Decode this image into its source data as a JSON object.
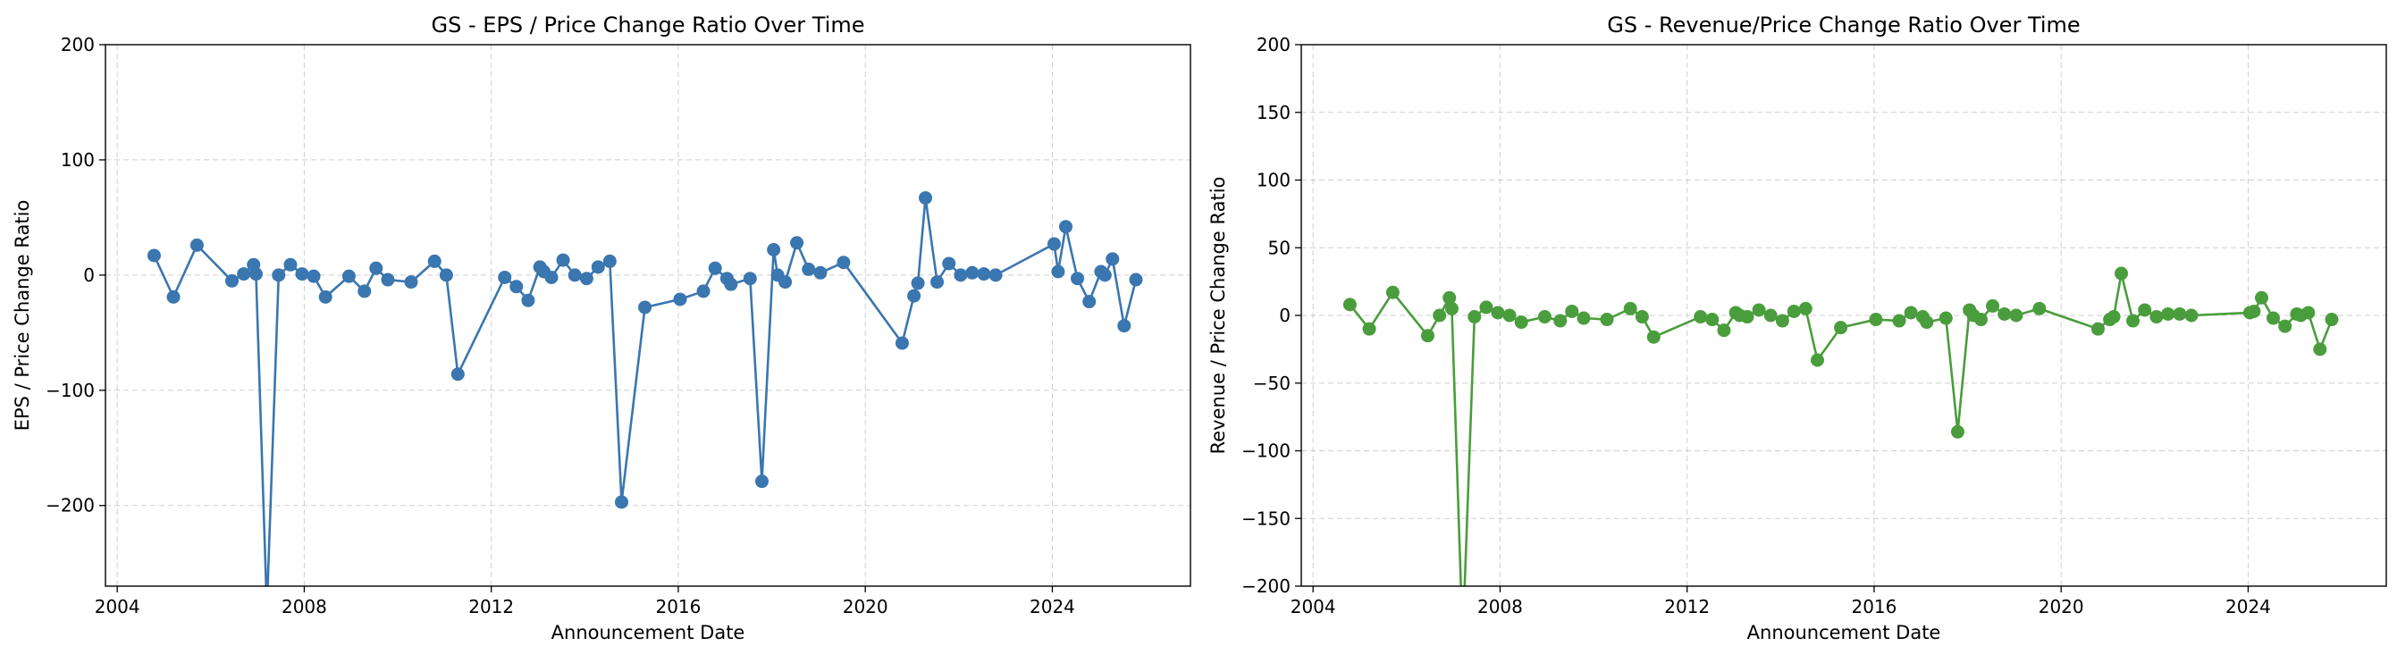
{
  "chart_data": [
    {
      "type": "line",
      "title": "GS - EPS / Price Change Ratio Over Time",
      "xlabel": "Announcement Date",
      "ylabel": "EPS / Price Change Ratio",
      "xlim": [
        "2003-10-01",
        "2026-12-15"
      ],
      "ylim": [
        -270,
        200
      ],
      "xticks": [
        "2004",
        "2008",
        "2012",
        "2016",
        "2020",
        "2024"
      ],
      "yticks": [
        200,
        100,
        0,
        -100,
        -200
      ],
      "ytick_labels": [
        "200",
        "100",
        "0",
        "−100",
        "−200"
      ],
      "grid": true,
      "color": "#3a76af",
      "series": [
        {
          "x": [
            "2004-10-15",
            "2005-03-15",
            "2005-09-15",
            "2006-06-15",
            "2006-09-15",
            "2006-12-01",
            "2006-12-20",
            "2007-03-15",
            "2007-06-15",
            "2007-09-15",
            "2007-12-15",
            "2008-03-15",
            "2008-06-15",
            "2008-12-15",
            "2009-04-15",
            "2009-07-15",
            "2009-10-15",
            "2010-04-15",
            "2010-10-15",
            "2011-01-15",
            "2011-04-15",
            "2012-04-15",
            "2012-07-15",
            "2012-10-15",
            "2013-01-15",
            "2013-02-15",
            "2013-04-15",
            "2013-07-15",
            "2013-10-15",
            "2014-01-15",
            "2014-04-15",
            "2014-07-15",
            "2014-10-15",
            "2015-04-15",
            "2016-01-15",
            "2016-07-15",
            "2016-10-15",
            "2017-01-15",
            "2017-02-15",
            "2017-07-15",
            "2017-10-15",
            "2018-01-15",
            "2018-02-15",
            "2018-04-15",
            "2018-07-15",
            "2018-10-15",
            "2019-01-15",
            "2019-07-15",
            "2020-10-15",
            "2021-01-15",
            "2021-02-15",
            "2021-04-15",
            "2021-07-15",
            "2021-10-15",
            "2022-01-15",
            "2022-04-15",
            "2022-07-15",
            "2022-10-15",
            "2024-01-15",
            "2024-02-15",
            "2024-04-15",
            "2024-07-15",
            "2024-10-15",
            "2025-01-15",
            "2025-02-15",
            "2025-04-15",
            "2025-07-15",
            "2025-10-15"
          ],
          "y": [
            17,
            -19,
            26,
            -5,
            1,
            9,
            1,
            -290,
            0,
            9,
            1,
            -1,
            -19,
            -1,
            -14,
            6,
            -4,
            -6,
            12,
            0,
            -86,
            -2,
            -10,
            -22,
            7,
            3,
            -2,
            13,
            0,
            -3,
            7,
            12,
            -197,
            -28,
            -21,
            -14,
            6,
            -3,
            -8,
            -3,
            -179,
            22,
            0,
            -6,
            28,
            5,
            2,
            11,
            -59,
            -18,
            -7,
            67,
            -6,
            10,
            0,
            2,
            1,
            0,
            27,
            3,
            42,
            -3,
            -23,
            3,
            0,
            14,
            -44,
            -4
          ]
        }
      ]
    },
    {
      "type": "line",
      "title": "GS - Revenue/Price Change Ratio Over Time",
      "xlabel": "Announcement Date",
      "ylabel": "Revenue / Price Change Ratio",
      "xlim": [
        "2003-10-01",
        "2026-12-15"
      ],
      "ylim": [
        -200,
        200
      ],
      "xticks": [
        "2004",
        "2008",
        "2012",
        "2016",
        "2020",
        "2024"
      ],
      "yticks": [
        200,
        150,
        100,
        50,
        0,
        -50,
        -100,
        -150,
        -200
      ],
      "ytick_labels": [
        "200",
        "150",
        "100",
        "50",
        "0",
        "−50",
        "−100",
        "−150",
        "−200"
      ],
      "grid": true,
      "color": "#4a9d3c",
      "series": [
        {
          "x": [
            "2004-10-15",
            "2005-03-15",
            "2005-09-15",
            "2006-06-15",
            "2006-09-15",
            "2006-12-01",
            "2006-12-20",
            "2007-03-15",
            "2007-06-15",
            "2007-09-15",
            "2007-12-15",
            "2008-03-15",
            "2008-06-15",
            "2008-12-15",
            "2009-04-15",
            "2009-07-15",
            "2009-10-15",
            "2010-04-15",
            "2010-10-15",
            "2011-01-15",
            "2011-04-15",
            "2012-04-15",
            "2012-07-15",
            "2012-10-15",
            "2013-01-15",
            "2013-02-15",
            "2013-04-15",
            "2013-07-15",
            "2013-10-15",
            "2014-01-15",
            "2014-04-15",
            "2014-07-15",
            "2014-10-15",
            "2015-04-15",
            "2016-01-15",
            "2016-07-15",
            "2016-10-15",
            "2017-01-15",
            "2017-02-15",
            "2017-07-15",
            "2017-10-15",
            "2018-01-15",
            "2018-02-15",
            "2018-04-15",
            "2018-07-15",
            "2018-10-15",
            "2019-01-15",
            "2019-07-15",
            "2020-10-15",
            "2021-01-15",
            "2021-02-15",
            "2021-04-15",
            "2021-07-15",
            "2021-10-15",
            "2022-01-15",
            "2022-04-15",
            "2022-07-15",
            "2022-10-15",
            "2024-01-15",
            "2024-02-15",
            "2024-04-15",
            "2024-07-15",
            "2024-10-15",
            "2025-01-15",
            "2025-02-15",
            "2025-04-15",
            "2025-07-15",
            "2025-10-15"
          ],
          "y": [
            8,
            -10,
            17,
            -15,
            0,
            13,
            5,
            -240,
            -1,
            6,
            2,
            0,
            -5,
            -1,
            -4,
            3,
            -2,
            -3,
            5,
            -1,
            -16,
            -1,
            -3,
            -11,
            2,
            0,
            -1,
            4,
            0,
            -4,
            3,
            5,
            -33,
            -9,
            -3,
            -4,
            2,
            -1,
            -5,
            -2,
            -86,
            4,
            0,
            -3,
            7,
            1,
            0,
            5,
            -10,
            -3,
            -1,
            31,
            -4,
            4,
            -1,
            1,
            1,
            0,
            2,
            3,
            13,
            -2,
            -8,
            1,
            0,
            2,
            -25,
            -3
          ]
        }
      ]
    }
  ]
}
